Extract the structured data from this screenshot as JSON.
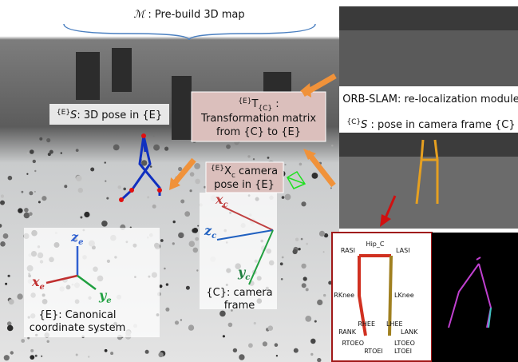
{
  "map_label": {
    "symbol": "ℳ",
    "text": " : Pre-build 3D map"
  },
  "orb_label": "ORB-SLAM: re-localization module",
  "camera_pose_label": {
    "sup": "{C}",
    "symbol": "S",
    "text": " : pose in camera frame {C}"
  },
  "world_pose_label": {
    "sup": "{E}",
    "symbol": "S",
    "text": ": 3D pose in {E}"
  },
  "transform_box": {
    "sup": "{E}",
    "symbol": "T",
    "sub": "{C}",
    "text": " :",
    "lines": [
      "Transformation matrix",
      "from {C} to {E}"
    ]
  },
  "camera_box": {
    "sup": "{E}",
    "symbol": "X",
    "sub": "c",
    "text": " camera",
    "line2": "pose in {E}"
  },
  "camera_axes": {
    "x": {
      "symbol": "x",
      "sub": "c"
    },
    "z": {
      "symbol": "z",
      "sub": "c"
    },
    "y": {
      "symbol": "y",
      "sub": "c"
    },
    "lines": [
      "{C}: camera",
      "frame"
    ]
  },
  "world_axes": {
    "z": {
      "symbol": "z",
      "sub": "e"
    },
    "x": {
      "symbol": "x",
      "sub": "e"
    },
    "y": {
      "symbol": "y",
      "sub": "e"
    },
    "lines": [
      "{E}: Canonical",
      "coordinate system"
    ]
  },
  "joints": [
    "Hip_C",
    "RASI",
    "LASI",
    "RKnee",
    "LKnee",
    "RHEE",
    "LHEE",
    "RANK",
    "LANK",
    "RTOEO",
    "LTOEO",
    "RTOEI",
    "LTOEI"
  ]
}
